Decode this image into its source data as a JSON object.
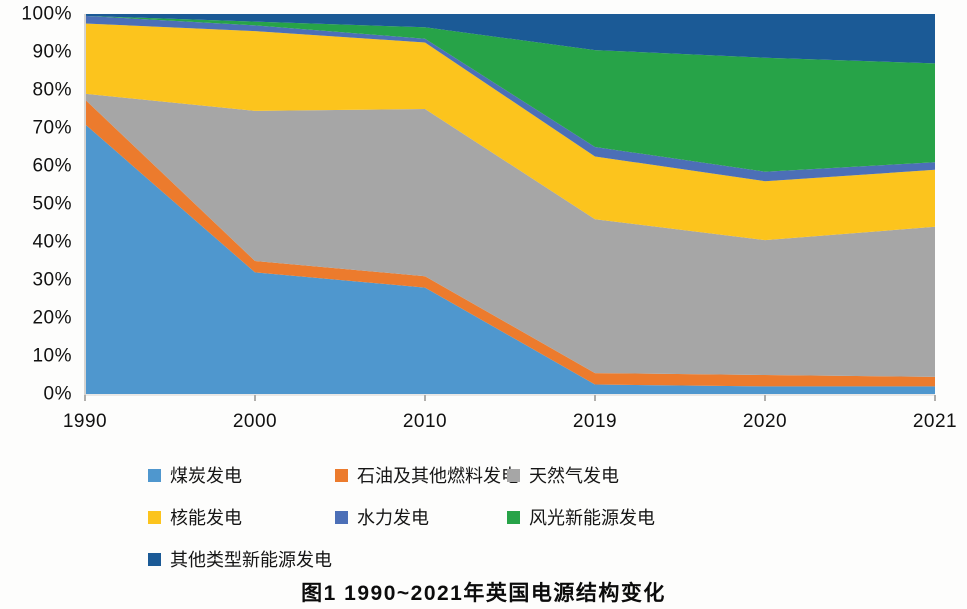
{
  "figure": {
    "caption": "图1  1990~2021年英国电源结构变化"
  },
  "axes": {
    "y_tick_labels": [
      "100%",
      "90%",
      "80%",
      "70%",
      "60%",
      "50%",
      "40%",
      "30%",
      "20%",
      "10%",
      "0%"
    ],
    "axis_color": "#d6d4d1",
    "tick_color": "#b0aeab"
  },
  "chart_data": {
    "type": "area",
    "stacked": true,
    "percent_stack": true,
    "title": "图1  1990~2021年英国电源结构变化",
    "xlabel": "",
    "ylabel": "",
    "ylim": [
      0,
      100
    ],
    "grid": false,
    "legend_position": "bottom",
    "categories": [
      "1990",
      "2000",
      "2010",
      "2019",
      "2020",
      "2021"
    ],
    "series": [
      {
        "key": "coal",
        "name": "煤炭发电",
        "color": "#4f97ce",
        "values": [
          71,
          32,
          28,
          2.5,
          2,
          2
        ]
      },
      {
        "key": "oil-other-fuels",
        "name": "石油及其他燃料发电",
        "color": "#ec7b2d",
        "values": [
          6.5,
          3,
          3,
          3,
          3,
          2.5
        ]
      },
      {
        "key": "natural-gas",
        "name": "天然气发电",
        "color": "#a6a6a6",
        "values": [
          1.5,
          39.5,
          44,
          40.5,
          35.5,
          39.5
        ]
      },
      {
        "key": "nuclear",
        "name": "核能发电",
        "color": "#fcc41d",
        "values": [
          18.5,
          21,
          17.5,
          16.5,
          15.5,
          15
        ]
      },
      {
        "key": "hydro",
        "name": "水力发电",
        "color": "#4c6fb7",
        "values": [
          2,
          1.5,
          1,
          2.5,
          2.5,
          2
        ]
      },
      {
        "key": "wind-solar",
        "name": "风光新能源发电",
        "color": "#27a348",
        "values": [
          0,
          1,
          3,
          25.5,
          30,
          26
        ]
      },
      {
        "key": "other-renewables",
        "name": "其他类型新能源发电",
        "color": "#1b5a96",
        "values": [
          0.5,
          2,
          3.5,
          9.5,
          11.5,
          13
        ]
      }
    ]
  }
}
